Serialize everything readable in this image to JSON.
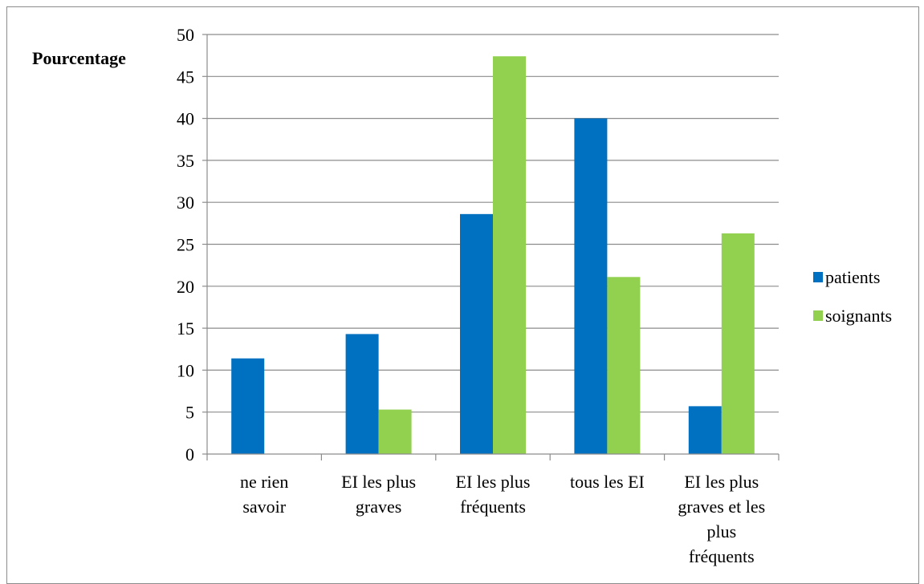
{
  "chart_data": {
    "type": "bar",
    "ylabel": "Pourcentage",
    "xlabel": "",
    "ylim": [
      0,
      50
    ],
    "yticks": [
      0,
      5,
      10,
      15,
      20,
      25,
      30,
      35,
      40,
      45,
      50
    ],
    "grid": true,
    "legend_position": "right",
    "categories": [
      [
        "ne rien",
        "savoir"
      ],
      [
        "EI les plus",
        "graves"
      ],
      [
        "EI les plus",
        "fréquents"
      ],
      [
        "tous les EI"
      ],
      [
        "EI les plus",
        "graves et les",
        "plus",
        "fréquents"
      ]
    ],
    "series": [
      {
        "name": "patients",
        "color": "#0070c0",
        "values": [
          11.4,
          14.3,
          28.6,
          40.0,
          5.7
        ]
      },
      {
        "name": "soignants",
        "color": "#92d050",
        "values": [
          0,
          5.3,
          47.4,
          21.1,
          26.3
        ]
      }
    ]
  }
}
